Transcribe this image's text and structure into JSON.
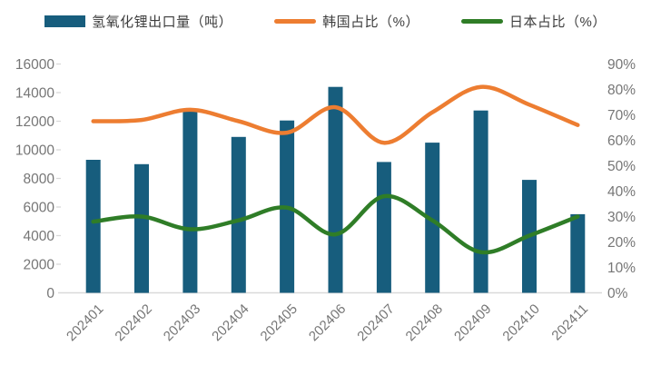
{
  "chart_data": {
    "type": "combo",
    "categories": [
      "202401",
      "202402",
      "202403",
      "202404",
      "202405",
      "202406",
      "202407",
      "202408",
      "202409",
      "202410",
      "202411"
    ],
    "series": [
      {
        "name": "氢氧化锂出口量（吨）",
        "type": "bar",
        "axis": "left",
        "color": "#175D7D",
        "values": [
          9300,
          9000,
          12800,
          10900,
          12050,
          14400,
          9150,
          10500,
          12750,
          7900,
          5500
        ]
      },
      {
        "name": "韩国占比（%）",
        "type": "line",
        "axis": "right",
        "color": "#ED7D31",
        "values": [
          67.5,
          68,
          72,
          67.5,
          63,
          73,
          59,
          71,
          81,
          74,
          66
        ]
      },
      {
        "name": "日本占比（%）",
        "type": "line",
        "axis": "right",
        "color": "#2F7D27",
        "values": [
          28,
          30,
          25,
          28.5,
          33.5,
          23,
          38,
          28.5,
          16,
          22.5,
          30
        ]
      }
    ],
    "left_axis": {
      "min": 0,
      "max": 16000,
      "step": 2000,
      "tick_labels": [
        "0",
        "2000",
        "4000",
        "6000",
        "8000",
        "10000",
        "12000",
        "14000",
        "16000"
      ]
    },
    "right_axis": {
      "min": 0,
      "max": 90,
      "step": 10,
      "tick_labels": [
        "0%",
        "10%",
        "20%",
        "30%",
        "40%",
        "50%",
        "60%",
        "70%",
        "80%",
        "90%"
      ]
    },
    "title": "",
    "legend_position": "top",
    "grid": false,
    "axis_line_color": "#D9D9D9",
    "axis_text_color": "#767676"
  }
}
